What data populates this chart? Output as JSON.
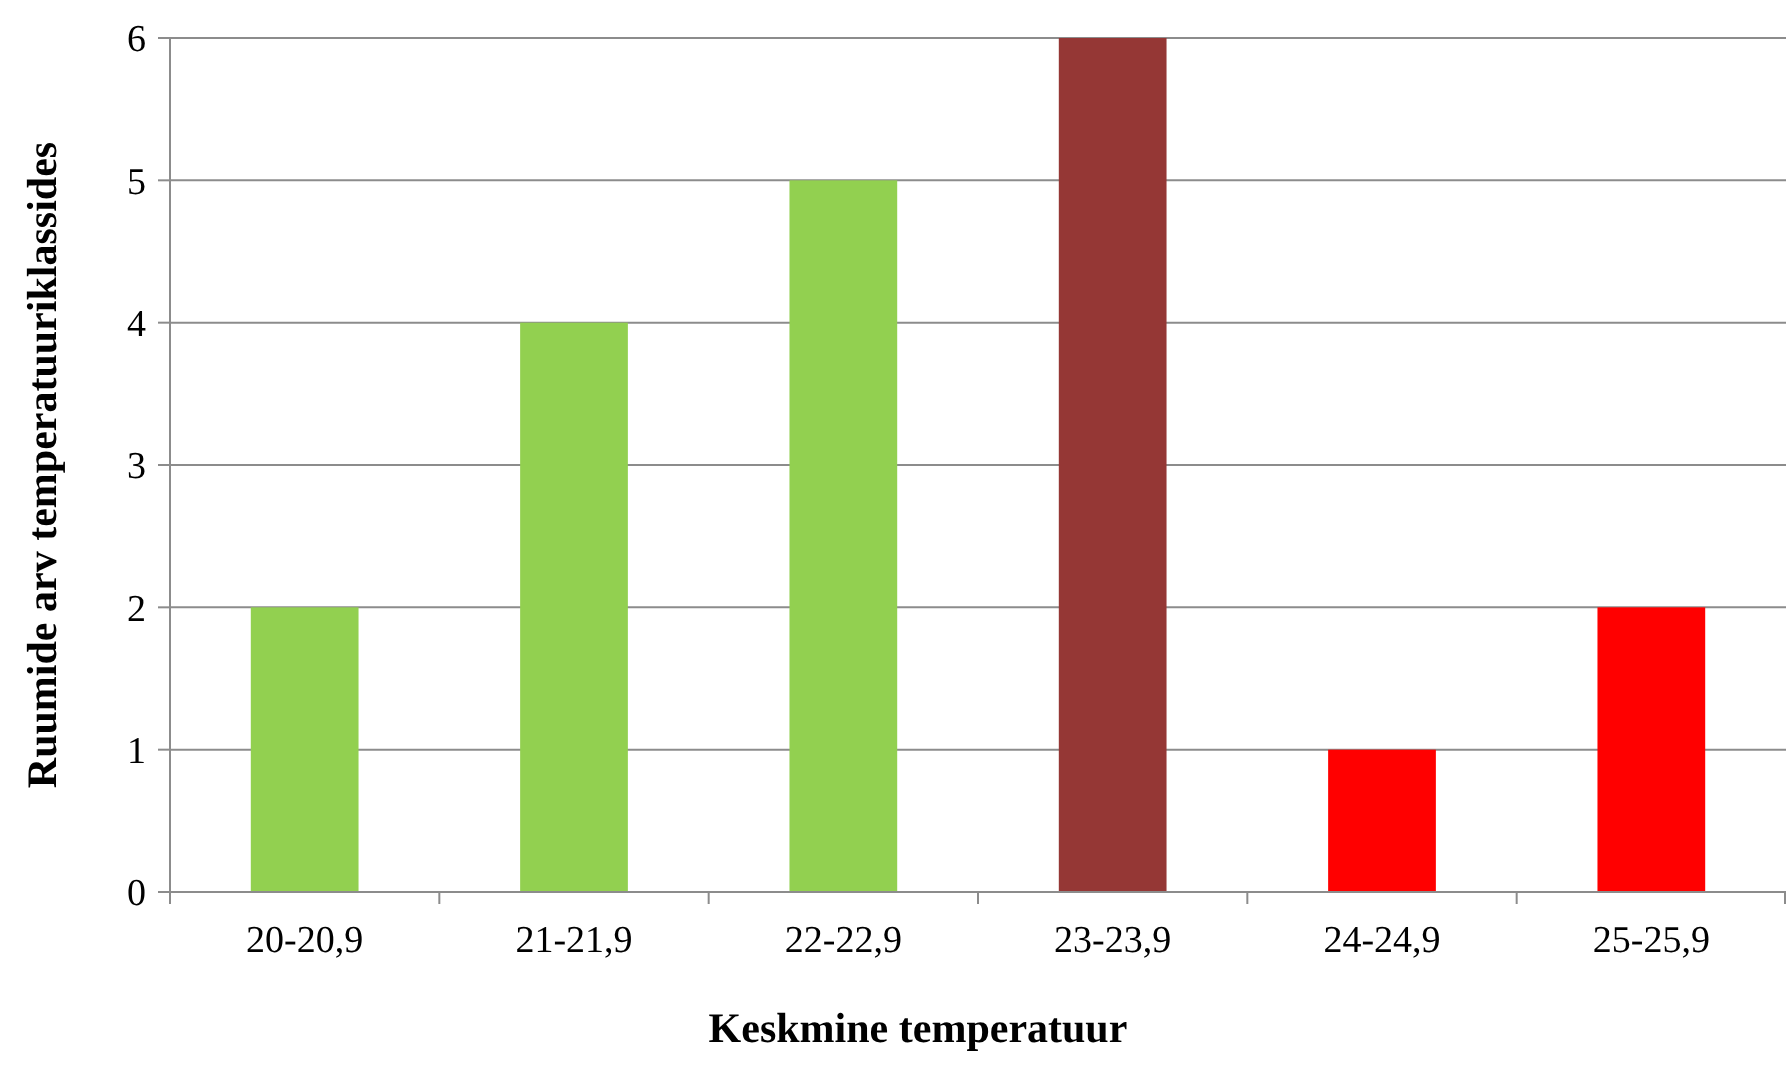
{
  "chart_data": {
    "type": "bar",
    "xlabel": "Keskmine temperatuur",
    "ylabel": "Ruumide arv temperatuuriklassides",
    "categories": [
      "20-20,9",
      "21-21,9",
      "22-22,9",
      "23-23,9",
      "24-24,9",
      "25-25,9"
    ],
    "values": [
      2,
      4,
      5,
      6,
      1,
      2
    ],
    "colors": [
      "#92d050",
      "#92d050",
      "#92d050",
      "#953735",
      "#ff0000",
      "#ff0000"
    ],
    "ylim": [
      0,
      6
    ],
    "yticks": [
      0,
      1,
      2,
      3,
      4,
      5,
      6
    ],
    "grid": "y"
  }
}
